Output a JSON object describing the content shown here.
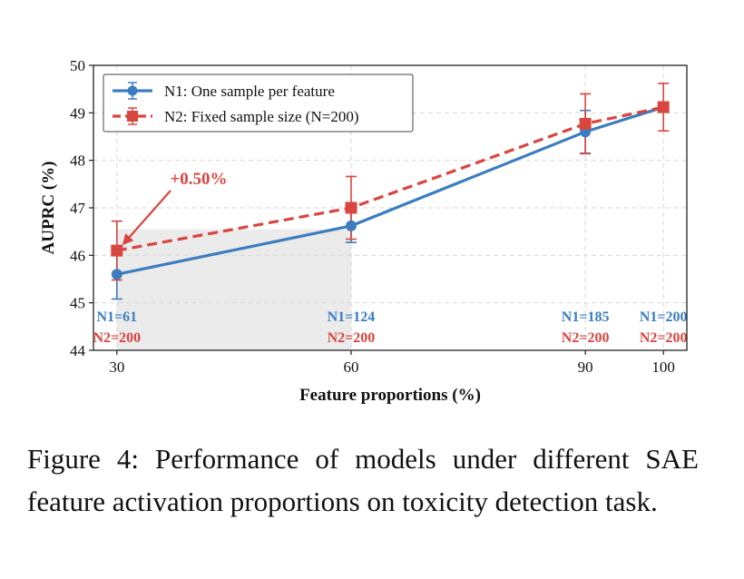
{
  "chart_data": {
    "type": "line",
    "x": [
      30,
      60,
      90,
      100
    ],
    "xlim": [
      27,
      103
    ],
    "ylim": [
      44,
      50
    ],
    "yticks": [
      44,
      45,
      46,
      47,
      48,
      49,
      50
    ],
    "xlabel": "Feature proportions (%)",
    "ylabel": "AUPRC (%)",
    "grid": true,
    "legend_position": "top-left",
    "series": [
      {
        "name": "N1: One sample per feature",
        "color": "#3b7dc0",
        "style": "solid",
        "marker": "circle",
        "values": [
          45.6,
          46.62,
          48.6,
          49.12
        ],
        "err": [
          0.52,
          0.35,
          0.45,
          0.0
        ]
      },
      {
        "name": "N2: Fixed sample size (N=200)",
        "color": "#d9453f",
        "style": "dashed",
        "marker": "square",
        "values": [
          46.1,
          47.0,
          48.77,
          49.12
        ],
        "err": [
          0.62,
          0.66,
          0.63,
          0.5
        ]
      }
    ],
    "shaded_region": {
      "x": [
        30,
        60
      ],
      "y": [
        44,
        46.55
      ]
    },
    "annotation": {
      "text": "+0.50%",
      "x": 30,
      "y": 46.1
    },
    "sample_labels": [
      {
        "x": 30,
        "n1": "N1=61",
        "n2": "N2=200"
      },
      {
        "x": 60,
        "n1": "N1=124",
        "n2": "N2=200"
      },
      {
        "x": 90,
        "n1": "N1=185",
        "n2": "N2=200"
      },
      {
        "x": 100,
        "n1": "N1=200",
        "n2": "N2=200"
      }
    ]
  },
  "caption": "Figure 4: Performance of models under different SAE feature activation proportions on toxicity detection task."
}
